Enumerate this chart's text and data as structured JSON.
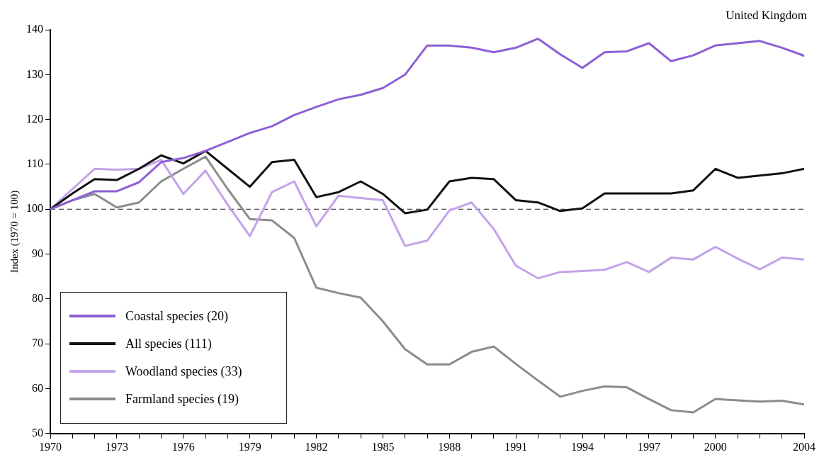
{
  "chart_data": {
    "type": "line",
    "ylabel": "Index (1970 = 100)",
    "annotations": [
      "United Kingdom"
    ],
    "x": [
      1970,
      1971,
      1972,
      1973,
      1974,
      1975,
      1976,
      1977,
      1978,
      1979,
      1980,
      1981,
      1982,
      1983,
      1984,
      1985,
      1986,
      1987,
      1988,
      1989,
      1990,
      1991,
      1992,
      1993,
      1994,
      1995,
      1996,
      1997,
      1998,
      1999,
      2000,
      2001,
      2002,
      2003,
      2004
    ],
    "series": [
      {
        "name": "Coastal species (20)",
        "color": "#8e5fd6",
        "values": [
          100,
          102,
          104,
          104,
          106,
          110.5,
          111.4,
          113,
          115,
          117,
          118.5,
          121,
          122.8,
          124.5,
          125.5,
          127,
          130,
          136.5,
          136.5,
          136,
          135,
          136,
          138,
          134.5,
          131.5,
          135,
          135.2,
          137,
          133,
          134.3,
          136.5,
          137,
          137.5,
          136,
          134.2
        ]
      },
      {
        "name": "All species (111)",
        "color": "#111111",
        "values": [
          100,
          103.5,
          106.7,
          106.5,
          109,
          112,
          110.2,
          113,
          109,
          105,
          110.5,
          111,
          102.7,
          103.8,
          106.2,
          103.4,
          99.1,
          99.9,
          106.2,
          107,
          106.7,
          102,
          101.5,
          99.6,
          100.2,
          103.5,
          103.5,
          103.5,
          103.5,
          104.2,
          109,
          107,
          107.5,
          108,
          109
        ]
      },
      {
        "name": "Woodland species (33)",
        "color": "#c3a3e8",
        "values": [
          100,
          104.5,
          109,
          108.8,
          109,
          111,
          103.4,
          108.6,
          101,
          94,
          103.8,
          106.2,
          96.2,
          103,
          102.5,
          102,
          91.8,
          93,
          99.7,
          101.5,
          95.6,
          87.4,
          84.6,
          86,
          86.2,
          86.5,
          88.2,
          86,
          89.2,
          88.8,
          91.6,
          89,
          86.6,
          89.2,
          88.8
        ]
      },
      {
        "name": "Farmland species (19)",
        "color": "#8c8c8c",
        "values": [
          100,
          102,
          103.4,
          100.4,
          101.5,
          106.2,
          109,
          111.7,
          104.5,
          97.8,
          97.5,
          93.6,
          82.5,
          81.3,
          80.3,
          75,
          68.8,
          65.4,
          65.4,
          68.2,
          69.4,
          65.5,
          61.8,
          58.2,
          59.5,
          60.5,
          60.3,
          57.7,
          55.2,
          54.7,
          57.7,
          57.4,
          57.1,
          57.3,
          56.5
        ]
      }
    ],
    "xlim": [
      1970,
      2004
    ],
    "xticks": [
      1970,
      {
        "value": 1971,
        "label": null
      },
      {
        "value": 1972,
        "label": null
      },
      1973,
      {
        "value": 1974,
        "label": null
      },
      {
        "value": 1975,
        "label": null
      },
      1976,
      {
        "value": 1977,
        "label": null
      },
      {
        "value": 1978,
        "label": null
      },
      1979,
      {
        "value": 1980,
        "label": null
      },
      {
        "value": 1981,
        "label": null
      },
      1982,
      {
        "value": 1983,
        "label": null
      },
      {
        "value": 1984,
        "label": null
      },
      1985,
      {
        "value": 1986,
        "label": null
      },
      {
        "value": 1987,
        "label": null
      },
      1988,
      {
        "value": 1989,
        "label": null
      },
      {
        "value": 1990,
        "label": null
      },
      1991,
      {
        "value": 1992,
        "label": null
      },
      {
        "value": 1993,
        "label": null
      },
      1994,
      {
        "value": 1995,
        "label": null
      },
      {
        "value": 1996,
        "label": null
      },
      1997,
      {
        "value": 1998,
        "label": null
      },
      {
        "value": 1999,
        "label": null
      },
      2000,
      {
        "value": 2001,
        "label": null
      },
      {
        "value": 2002,
        "label": null
      },
      {
        "value": 2003,
        "label": null
      },
      2004
    ],
    "ylim": [
      50,
      140
    ],
    "yticks": [
      50,
      60,
      70,
      80,
      90,
      100,
      110,
      120,
      130,
      140
    ],
    "ref_lines": [
      {
        "axis": "y",
        "value": 100,
        "color": "#222222",
        "line_style": "dashed"
      }
    ],
    "legend": "bottom left"
  }
}
